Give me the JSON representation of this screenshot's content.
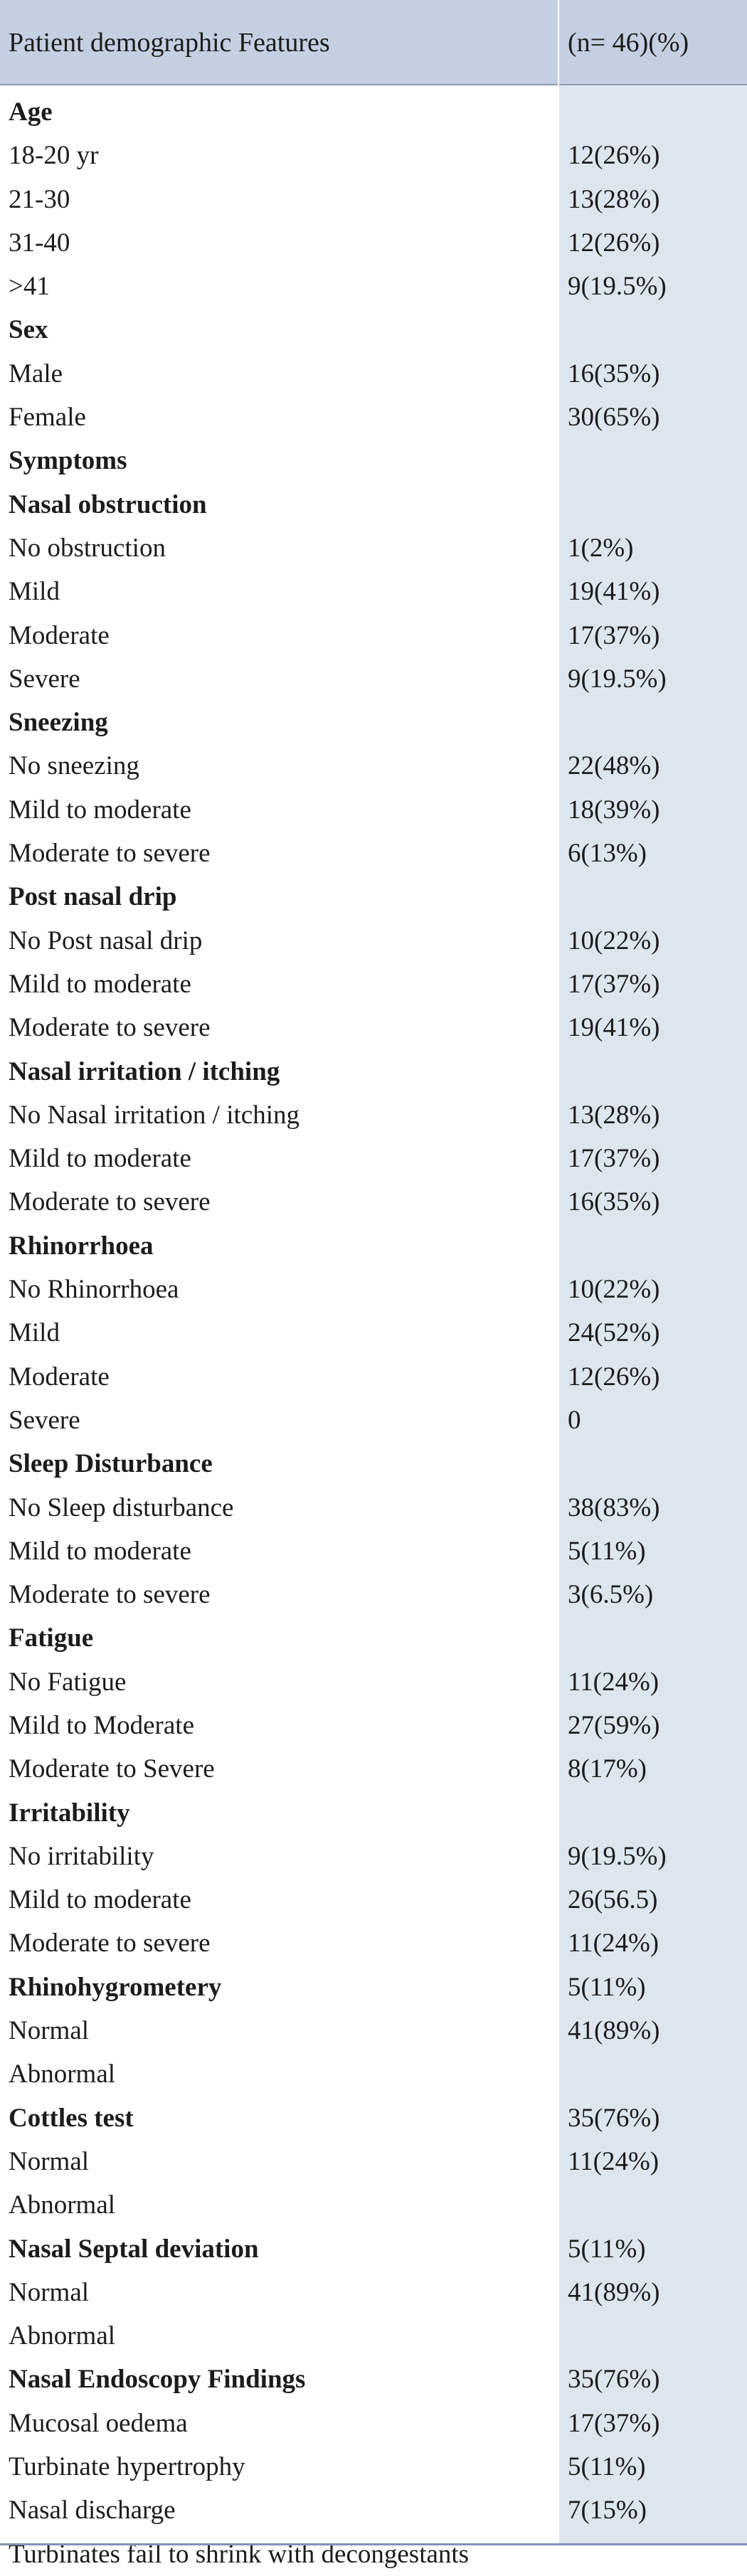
{
  "header": {
    "col1": "Patient demographic Features",
    "col2": "(n= 46)(%)"
  },
  "rows": [
    {
      "label": "Age",
      "value": "",
      "heading": true
    },
    {
      "label": "18-20 yr",
      "value": "12(26%)"
    },
    {
      "label": "21-30",
      "value": "13(28%)"
    },
    {
      "label": "31-40",
      "value": "12(26%)"
    },
    {
      "label": ">41",
      "value": "9(19.5%)"
    },
    {
      "label": "Sex",
      "value": "",
      "heading": true
    },
    {
      "label": "Male",
      "value": "16(35%)"
    },
    {
      "label": "Female",
      "value": "30(65%)"
    },
    {
      "label": "Symptoms",
      "value": "",
      "heading": true
    },
    {
      "label": "Nasal obstruction",
      "value": "",
      "heading": true
    },
    {
      "label": "No obstruction",
      "value": "1(2%)"
    },
    {
      "label": "Mild",
      "value": "19(41%)"
    },
    {
      "label": "Moderate",
      "value": "17(37%)"
    },
    {
      "label": "Severe",
      "value": "9(19.5%)"
    },
    {
      "label": "Sneezing",
      "value": "",
      "heading": true
    },
    {
      "label": "No sneezing",
      "value": "22(48%)"
    },
    {
      "label": "Mild to moderate",
      "value": "18(39%)"
    },
    {
      "label": "Moderate to severe",
      "value": "6(13%)"
    },
    {
      "label": "Post nasal drip",
      "value": "",
      "heading": true
    },
    {
      "label": "No Post nasal drip",
      "value": "10(22%)"
    },
    {
      "label": "Mild to moderate",
      "value": "17(37%)"
    },
    {
      "label": "Moderate to severe",
      "value": "19(41%)"
    },
    {
      "label": "Nasal irritation / itching",
      "value": "",
      "heading": true
    },
    {
      "label": "No Nasal irritation / itching",
      "value": "13(28%)"
    },
    {
      "label": "Mild to moderate",
      "value": "17(37%)"
    },
    {
      "label": "Moderate to severe",
      "value": "16(35%)"
    },
    {
      "label": "Rhinorrhoea",
      "value": "",
      "heading": true
    },
    {
      "label": "No Rhinorrhoea",
      "value": "10(22%)"
    },
    {
      "label": "Mild",
      "value": "24(52%)"
    },
    {
      "label": "Moderate",
      "value": "12(26%)"
    },
    {
      "label": "Severe",
      "value": "0"
    },
    {
      "label": "Sleep Disturbance",
      "value": "",
      "heading": true
    },
    {
      "label": "No Sleep disturbance",
      "value": "38(83%)"
    },
    {
      "label": "Mild to moderate",
      "value": "5(11%)"
    },
    {
      "label": "Moderate to severe",
      "value": "3(6.5%)"
    },
    {
      "label": "Fatigue",
      "value": "",
      "heading": true
    },
    {
      "label": "No Fatigue",
      "value": "11(24%)"
    },
    {
      "label": "Mild to Moderate",
      "value": "27(59%)"
    },
    {
      "label": "Moderate to Severe",
      "value": "8(17%)"
    },
    {
      "label": "Irritability",
      "value": "",
      "heading": true
    },
    {
      "label": "No irritability",
      "value": "9(19.5%)"
    },
    {
      "label": "Mild to moderate",
      "value": "26(56.5)"
    },
    {
      "label": "Moderate to severe",
      "value": "11(24%)"
    },
    {
      "label": "Rhinohygrometery",
      "value": "5(11%)",
      "heading": true
    },
    {
      "label": "Normal",
      "value": "41(89%)"
    },
    {
      "label": "Abnormal",
      "value": ""
    },
    {
      "label": "Cottles test",
      "value": "35(76%)",
      "heading": true
    },
    {
      "label": "Normal",
      "value": "11(24%)"
    },
    {
      "label": "Abnormal",
      "value": ""
    },
    {
      "label": "Nasal Septal deviation",
      "value": "5(11%)",
      "heading": true
    },
    {
      "label": "Normal",
      "value": "41(89%)"
    },
    {
      "label": "Abnormal",
      "value": ""
    },
    {
      "label": "Nasal Endoscopy Findings",
      "value": "35(76%)",
      "heading": true
    },
    {
      "label": "Mucosal oedema",
      "value": "17(37%)"
    },
    {
      "label": "Turbinate hypertrophy",
      "value": "5(11%)"
    },
    {
      "label": "Nasal discharge",
      "value": "7(15%)"
    },
    {
      "label": "Turbinates fail to shrink with decongestants",
      "value": ""
    }
  ]
}
